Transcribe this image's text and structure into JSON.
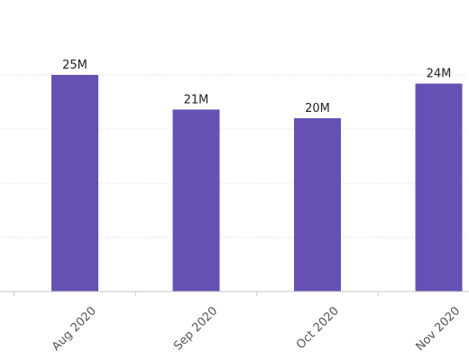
{
  "chart_data": {
    "type": "bar",
    "categories": [
      "Aug 2020",
      "Sep 2020",
      "Oct 2020",
      "Nov 2020"
    ],
    "values": [
      25,
      21,
      20,
      24
    ],
    "data_labels": [
      "25M",
      "21M",
      "20M",
      "24M"
    ],
    "unit": "M",
    "title": "",
    "xlabel": "",
    "ylabel": "",
    "ylim": [
      0,
      30
    ],
    "grid": true,
    "legend": "none",
    "bar_color": "#6650b4"
  }
}
